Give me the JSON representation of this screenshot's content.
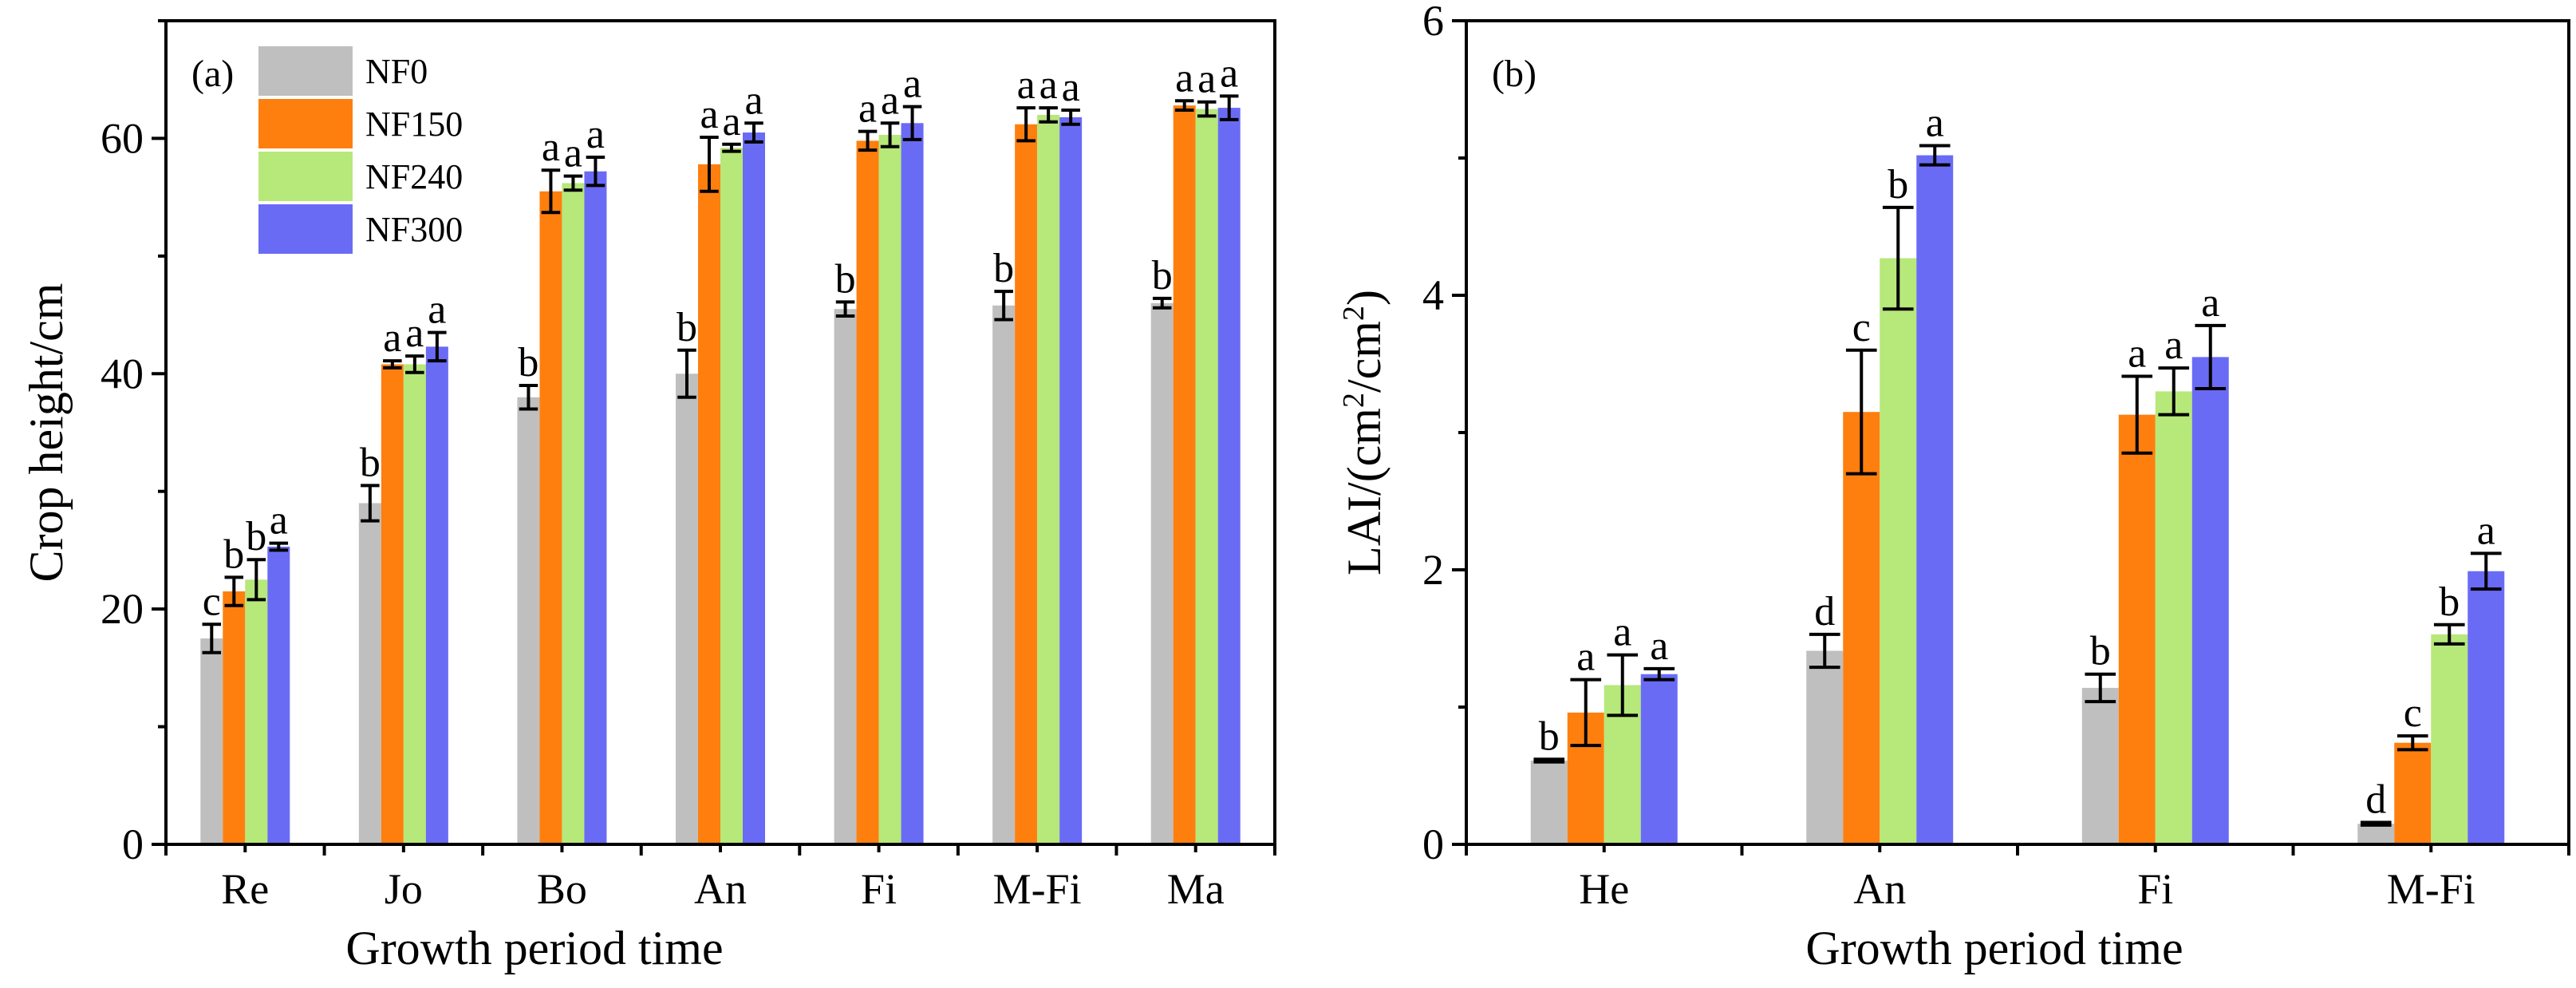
{
  "colors": {
    "NF0": "#bfbfbf",
    "NF150": "#ff7f0e",
    "NF240": "#b7e87a",
    "NF300": "#6a6bf5",
    "axis": "#000000",
    "error": "#000000"
  },
  "chart_data": [
    {
      "type": "bar",
      "panel": "(a)",
      "title": "",
      "xlabel": "Growth period time",
      "ylabel": "Crop height/cm",
      "ylim": [
        0,
        70
      ],
      "yticks": [
        "0",
        "20",
        "40",
        "60"
      ],
      "categories": [
        "Re",
        "Jo",
        "Bo",
        "An",
        "Fi",
        "M-Fi",
        "Ma"
      ],
      "legend_position": "top-left",
      "series": [
        {
          "name": "NF0",
          "values": [
            17.5,
            29.0,
            38.0,
            40.0,
            45.5,
            45.8,
            46.0
          ],
          "errors": [
            1.2,
            1.5,
            1.0,
            2.0,
            0.6,
            1.2,
            0.4
          ],
          "labels": [
            "c",
            "b",
            "b",
            "b",
            "b",
            "b",
            "b"
          ]
        },
        {
          "name": "NF150",
          "values": [
            21.5,
            40.8,
            55.5,
            57.8,
            59.8,
            61.2,
            62.8
          ],
          "errors": [
            1.2,
            0.3,
            1.8,
            2.3,
            0.8,
            1.4,
            0.4
          ],
          "labels": [
            "b",
            "a",
            "a",
            "a",
            "a",
            "a",
            "a"
          ]
        },
        {
          "name": "NF240",
          "values": [
            22.5,
            40.8,
            56.2,
            59.2,
            60.3,
            62.0,
            62.5
          ],
          "errors": [
            1.7,
            0.7,
            0.6,
            0.3,
            1.0,
            0.6,
            0.6
          ],
          "labels": [
            "b",
            "a",
            "a",
            "a",
            "a",
            "a",
            "a"
          ]
        },
        {
          "name": "NF300",
          "values": [
            25.3,
            42.3,
            57.2,
            60.5,
            61.3,
            61.8,
            62.6
          ],
          "errors": [
            0.3,
            1.2,
            1.2,
            0.8,
            1.4,
            0.6,
            1.0
          ],
          "labels": [
            "a",
            "a",
            "a",
            "a",
            "a",
            "a",
            "a"
          ]
        }
      ]
    },
    {
      "type": "bar",
      "panel": "(b)",
      "title": "",
      "xlabel": "Growth period time",
      "ylabel": "LAI/(cm²/cm²)",
      "ylabel_parts": {
        "prefix": "LAI/(cm",
        "sup1": "2",
        "mid": "/cm",
        "sup2": "2",
        "suffix": ")"
      },
      "ylim": [
        0,
        6
      ],
      "yticks": [
        "0",
        "2",
        "4",
        "6"
      ],
      "categories": [
        "He",
        "An",
        "Fi",
        "M-Fi"
      ],
      "series": [
        {
          "name": "NF0",
          "values": [
            0.61,
            1.41,
            1.14,
            0.15
          ],
          "errors": [
            0.01,
            0.12,
            0.1,
            0.01
          ],
          "labels": [
            "b",
            "d",
            "b",
            "d"
          ]
        },
        {
          "name": "NF150",
          "values": [
            0.96,
            3.15,
            3.13,
            0.74
          ],
          "errors": [
            0.24,
            0.45,
            0.28,
            0.05
          ],
          "labels": [
            "a",
            "c",
            "a",
            "c"
          ]
        },
        {
          "name": "NF240",
          "values": [
            1.16,
            4.27,
            3.3,
            1.53
          ],
          "errors": [
            0.22,
            0.37,
            0.17,
            0.07
          ],
          "labels": [
            "a",
            "b",
            "a",
            "b"
          ]
        },
        {
          "name": "NF300",
          "values": [
            1.24,
            5.02,
            3.55,
            1.99
          ],
          "errors": [
            0.04,
            0.07,
            0.23,
            0.13
          ],
          "labels": [
            "a",
            "a",
            "a",
            "a"
          ]
        }
      ]
    }
  ]
}
